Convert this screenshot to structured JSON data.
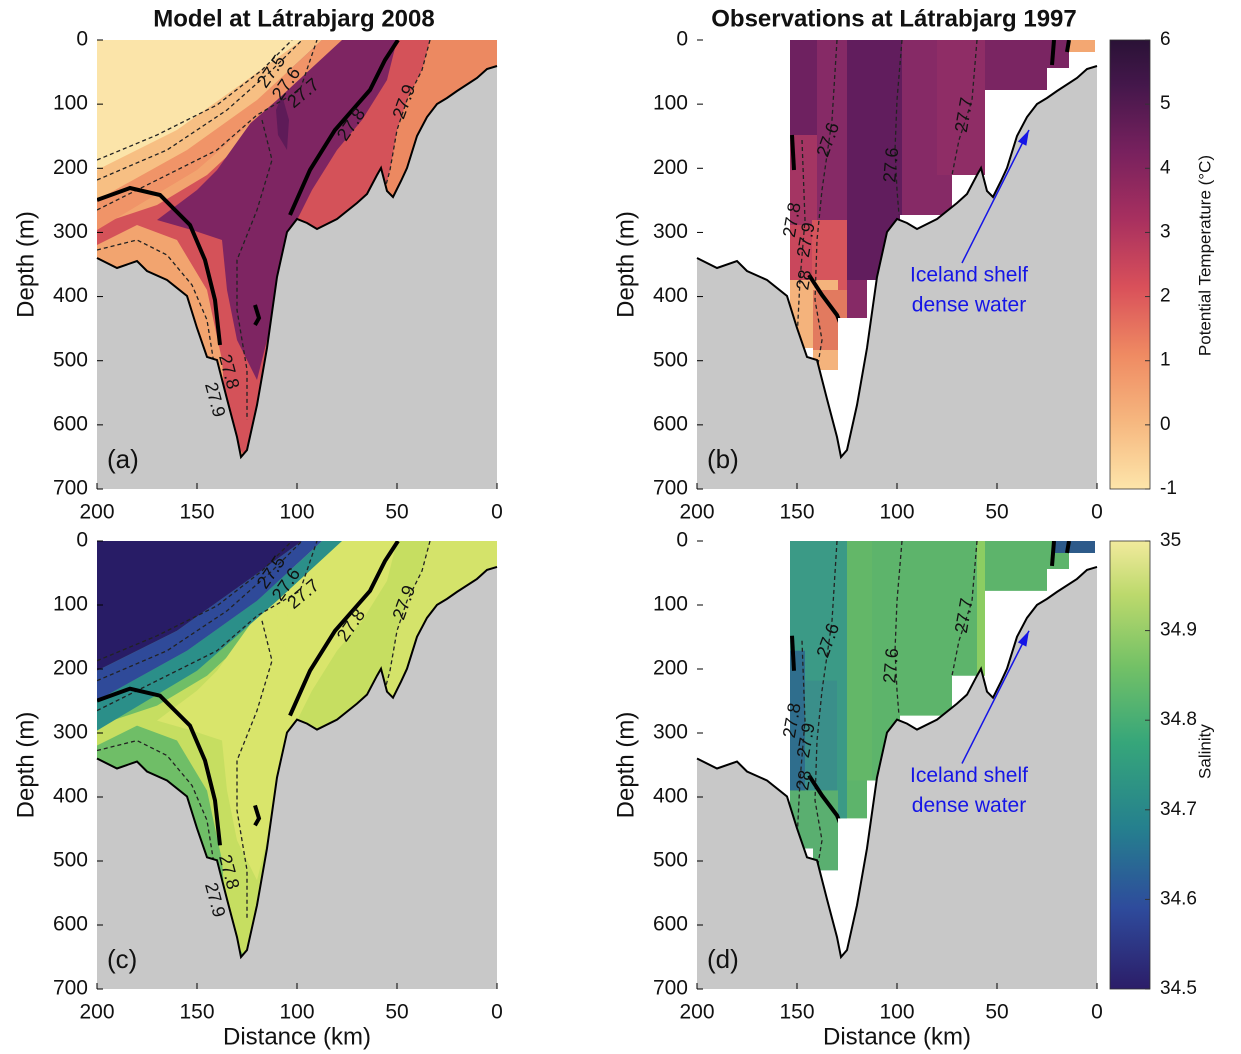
{
  "chart_data": [
    {
      "type": "contour",
      "title": "Model at Látrabjarg 2008",
      "panel_label": "(a)",
      "ylabel": "Depth (m)",
      "xlim": [
        200,
        0
      ],
      "ylim": [
        700,
        0
      ],
      "xticks": [
        200,
        150,
        100,
        50,
        0
      ],
      "yticks": [
        0,
        100,
        200,
        300,
        400,
        500,
        600,
        700
      ],
      "contour_labels": [
        27.5,
        27.6,
        27.7,
        27.8,
        27.9,
        27.8,
        27.9
      ]
    },
    {
      "type": "contour",
      "title": "Observations at Látrabjarg 1997",
      "panel_label": "(b)",
      "ylabel": "Depth (m)",
      "xlim": [
        200,
        0
      ],
      "ylim": [
        700,
        0
      ],
      "xticks": [
        200,
        150,
        100,
        50,
        0
      ],
      "yticks": [
        0,
        100,
        200,
        300,
        400,
        500,
        600,
        700
      ],
      "contour_labels": [
        27.6,
        27.6,
        27.7,
        28,
        27.8,
        27.9
      ],
      "annotation": [
        "Iceland shelf",
        "dense water"
      ],
      "colorbar": {
        "label": "Potential Temperature (°C)",
        "lim": [
          -1,
          6
        ],
        "ticks": [
          -1,
          0,
          1,
          2,
          3,
          4,
          5,
          6
        ]
      }
    },
    {
      "type": "contour",
      "panel_label": "(c)",
      "xlabel": "Distance (km)",
      "ylabel": "Depth (m)",
      "xlim": [
        200,
        0
      ],
      "ylim": [
        700,
        0
      ],
      "xticks": [
        200,
        150,
        100,
        50,
        0
      ],
      "yticks": [
        0,
        100,
        200,
        300,
        400,
        500,
        600,
        700
      ],
      "contour_labels": [
        27.5,
        27.6,
        27.7,
        27.8,
        27.9,
        27.8,
        27.9
      ]
    },
    {
      "type": "contour",
      "panel_label": "(d)",
      "xlabel": "Distance (km)",
      "ylabel": "Depth (m)",
      "xlim": [
        200,
        0
      ],
      "ylim": [
        700,
        0
      ],
      "xticks": [
        200,
        150,
        100,
        50,
        0
      ],
      "yticks": [
        0,
        100,
        200,
        300,
        400,
        500,
        600,
        700
      ],
      "contour_labels": [
        27.6,
        27.6,
        27.7,
        28,
        27.8,
        27.9
      ],
      "annotation": [
        "Iceland shelf",
        "dense water"
      ],
      "colorbar": {
        "label": "Salinity",
        "lim": [
          34.5,
          35
        ],
        "ticks": [
          34.5,
          34.6,
          34.7,
          34.8,
          34.9,
          35
        ]
      }
    }
  ]
}
